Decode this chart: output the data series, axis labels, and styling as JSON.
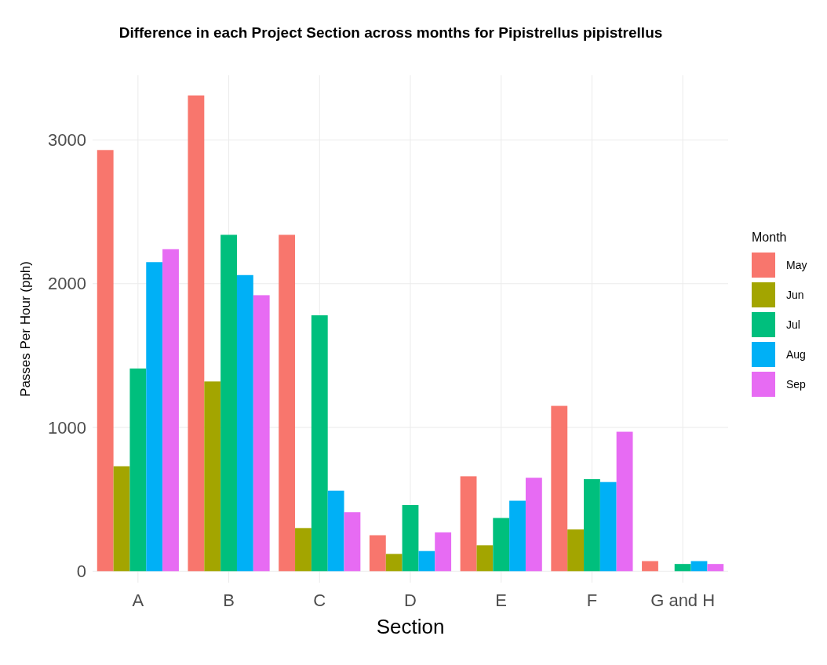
{
  "chart_data": {
    "type": "bar",
    "title": "Difference in each Project Section across months for Pipistrellus pipistrellus",
    "xlabel": "Section",
    "ylabel": "Passes Per Hour (pph)",
    "legend_title": "Month",
    "categories": [
      "A",
      "B",
      "C",
      "D",
      "E",
      "F",
      "G and H"
    ],
    "series": [
      {
        "name": "May",
        "color": "#f8766d",
        "values": [
          2930,
          3310,
          2340,
          250,
          660,
          1150,
          70
        ]
      },
      {
        "name": "Jun",
        "color": "#a3a500",
        "values": [
          730,
          1320,
          300,
          120,
          180,
          290,
          null
        ]
      },
      {
        "name": "Jul",
        "color": "#00bf7d",
        "values": [
          1410,
          2340,
          1780,
          460,
          370,
          640,
          50
        ]
      },
      {
        "name": "Aug",
        "color": "#00b0f6",
        "values": [
          2150,
          2060,
          560,
          140,
          490,
          620,
          70
        ]
      },
      {
        "name": "Sep",
        "color": "#e76bf3",
        "values": [
          2240,
          1920,
          410,
          270,
          650,
          970,
          50
        ]
      }
    ],
    "ylim": [
      -80,
      3450
    ],
    "yticks": [
      0,
      1000,
      2000,
      3000
    ],
    "grid": true,
    "legend": "right"
  }
}
